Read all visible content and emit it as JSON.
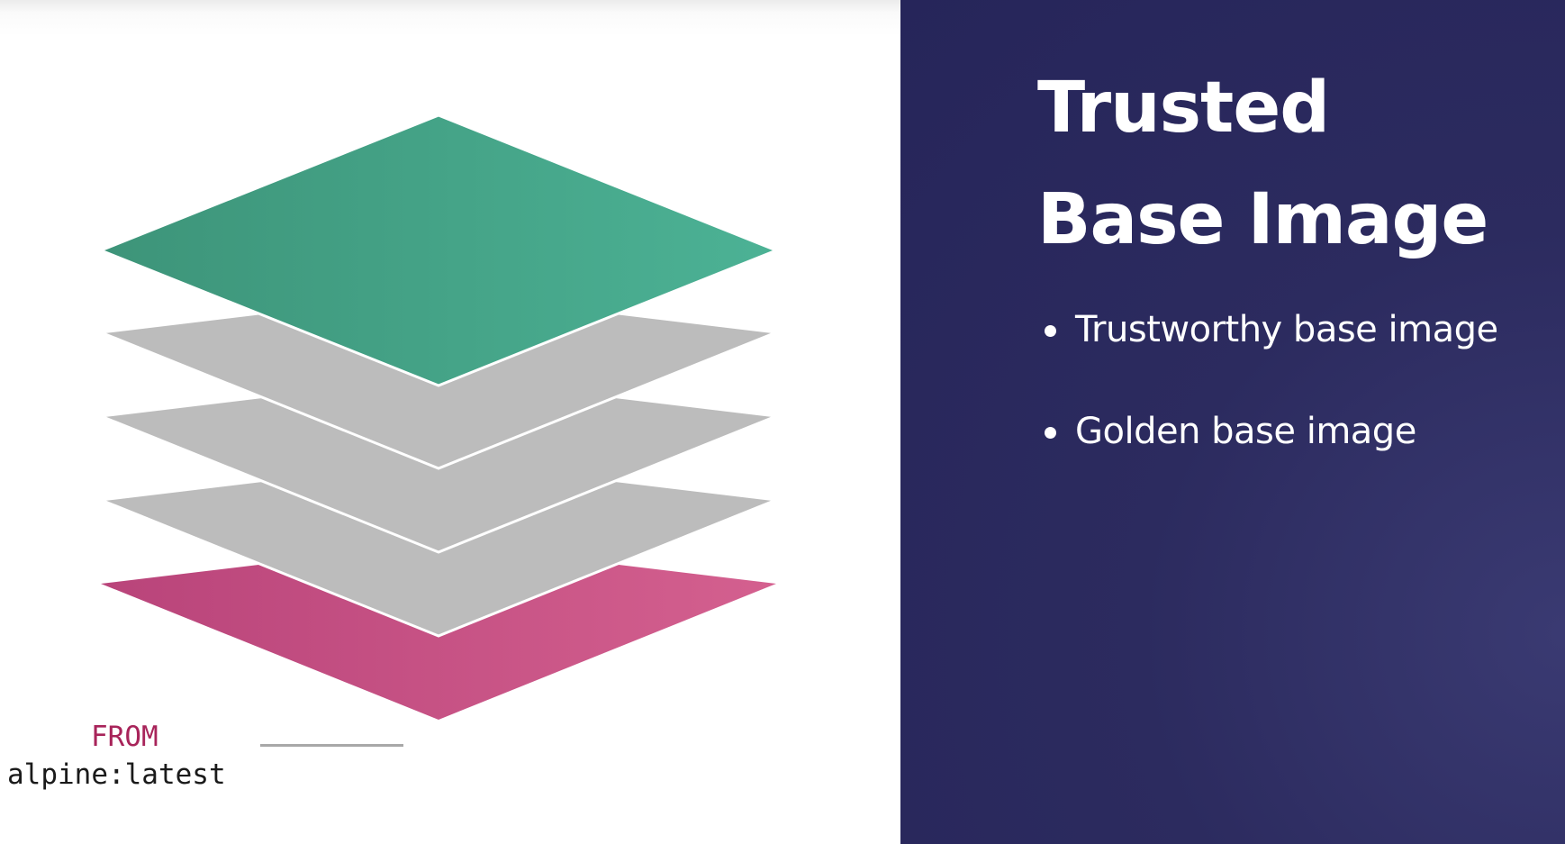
{
  "slide": {
    "title_line1": "Trusted",
    "title_line2": "Base Image",
    "bullets": [
      "Trustworthy base image",
      "Golden base image"
    ]
  },
  "diagram": {
    "from_keyword": "FROM",
    "from_image": "alpine:latest",
    "layers": [
      {
        "name": "top-layer",
        "color": "#46a98a"
      },
      {
        "name": "middle-layer",
        "color": "#bdbdbd"
      },
      {
        "name": "middle-layer",
        "color": "#bdbdbd"
      },
      {
        "name": "middle-layer",
        "color": "#bdbdbd"
      },
      {
        "name": "base-layer",
        "color": "#c95385"
      }
    ]
  },
  "colors": {
    "background_left": "#ffffff",
    "background_right": "#2c2b5f",
    "text_light": "#ffffff",
    "from_keyword": "#a8245a"
  }
}
